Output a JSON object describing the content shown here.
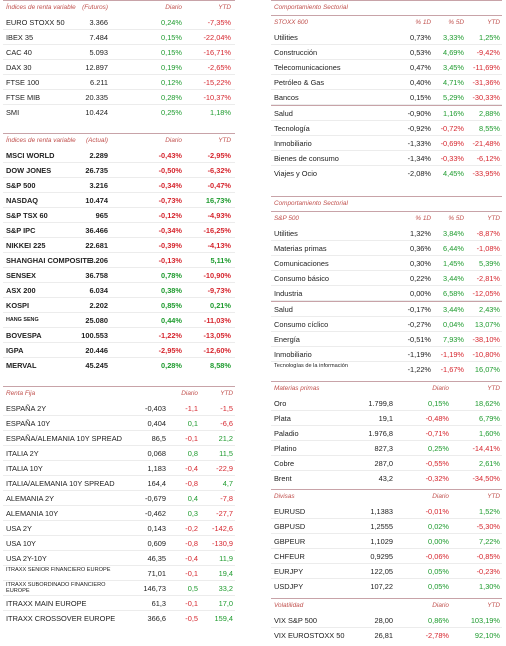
{
  "left": {
    "p1": {
      "headers": [
        "Índices de renta variable",
        "(Futuros)",
        "Diario",
        "YTD"
      ],
      "rows": [
        [
          "EURO STOXX 50",
          "3.366",
          "0,24%",
          "-7,35%"
        ],
        [
          "IBEX 35",
          "7.484",
          "0,15%",
          "-22,04%"
        ],
        [
          "CAC 40",
          "5.093",
          "0,15%",
          "-16,71%"
        ],
        [
          "DAX 30",
          "12.897",
          "0,19%",
          "-2,65%"
        ],
        [
          "FTSE 100",
          "6.211",
          "0,12%",
          "-15,22%"
        ],
        [
          "FTSE MIB",
          "20.335",
          "0,28%",
          "-10,37%"
        ],
        [
          "SMI",
          "10.424",
          "0,25%",
          "1,18%"
        ]
      ]
    },
    "p2": {
      "headers": [
        "Índices de renta variable",
        "(Actual)",
        "Diario",
        "YTD"
      ],
      "rows": [
        [
          "MSCI WORLD",
          "2.289",
          "-0,43%",
          "-2,95%"
        ],
        [
          "DOW JONES",
          "26.735",
          "-0,50%",
          "-6,32%"
        ],
        [
          "S&P 500",
          "3.216",
          "-0,34%",
          "-0,47%"
        ],
        [
          "NASDAQ",
          "10.474",
          "-0,73%",
          "16,73%"
        ],
        [
          "S&P TSX 60",
          "965",
          "-0,12%",
          "-4,93%"
        ],
        [
          "S&P IPC",
          "36.466",
          "-0,34%",
          "-16,25%"
        ],
        [
          "NIKKEI 225",
          "22.681",
          "-0,39%",
          "-4,13%"
        ],
        [
          "SHANGHAI COMPOSITE",
          "3.206",
          "-0,13%",
          "5,11%"
        ],
        [
          "SENSEX",
          "36.758",
          "0,78%",
          "-10,90%"
        ],
        [
          "ASX 200",
          "6.034",
          "0,38%",
          "-9,73%"
        ],
        [
          "KOSPI",
          "2.202",
          "0,85%",
          "0,21%"
        ],
        [
          "HANG SENG",
          "25.080",
          "0,44%",
          "-11,03%"
        ],
        [
          "BOVESPA",
          "100.553",
          "-1,22%",
          "-13,05%"
        ],
        [
          "IGPA",
          "20.446",
          "-2,95%",
          "-12,60%"
        ],
        [
          "MERVAL",
          "45.245",
          "0,28%",
          "8,58%"
        ]
      ]
    },
    "p3": {
      "headers": [
        "Renta Fija",
        "",
        "Diario",
        "YTD"
      ],
      "rows": [
        [
          "ESPAÑA 2Y",
          "-0,403",
          "-1,1",
          "-1,5"
        ],
        [
          "ESPAÑA 10Y",
          "0,404",
          "0,1",
          "-6,6"
        ],
        [
          "ESPAÑA/ALEMANIA 10Y SPREAD",
          "86,5",
          "-0,1",
          "21,2"
        ],
        [
          "ITALIA 2Y",
          "0,068",
          "0,8",
          "11,5"
        ],
        [
          "ITALIA 10Y",
          "1,183",
          "-0,4",
          "-22,9"
        ],
        [
          "ITALIA/ALEMANIA 10Y SPREAD",
          "164,4",
          "-0,8",
          "4,7"
        ],
        [
          "ALEMANIA 2Y",
          "-0,679",
          "0,4",
          "-7,8"
        ],
        [
          "ALEMANIA 10Y",
          "-0,462",
          "0,3",
          "-27,7"
        ],
        [
          "USA 2Y",
          "0,143",
          "-0,2",
          "-142,6"
        ],
        [
          "USA 10Y",
          "0,609",
          "-0,8",
          "-130,9"
        ],
        [
          "USA 2Y-10Y",
          "46,35",
          "-0,4",
          "11,9"
        ],
        [
          "ITRAXX SENIOR FINANCIERO EUROPE",
          "71,01",
          "-0,1",
          "19,4"
        ],
        [
          "ITRAXX SUBORDINADO FINANCIERO EUROPE",
          "146,73",
          "0,5",
          "33,2"
        ],
        [
          "ITRAXX MAIN EUROPE",
          "61,3",
          "-0,1",
          "17,0"
        ],
        [
          "ITRAXX CROSSOVER EUROPE",
          "366,6",
          "-0,5",
          "159,4"
        ]
      ]
    }
  },
  "right": {
    "p1": {
      "title": "Comportamiento Sectorial",
      "headers": [
        "STOXX 600",
        "% 1D",
        "% 5D",
        "YTD"
      ],
      "rows": [
        [
          "Utilities",
          "0,73%",
          "3,33%",
          "1,25%"
        ],
        [
          "Construcción",
          "0,53%",
          "4,69%",
          "-9,42%"
        ],
        [
          "Telecomunicaciones",
          "0,47%",
          "3,45%",
          "-11,69%"
        ],
        [
          "Petróleo & Gas",
          "0,40%",
          "4,71%",
          "-31,36%"
        ],
        [
          "Bancos",
          "0,15%",
          "5,29%",
          "-30,33%"
        ],
        [
          "Salud",
          "-0,90%",
          "1,16%",
          "2,88%"
        ],
        [
          "Tecnología",
          "-0,92%",
          "-0,72%",
          "8,55%"
        ],
        [
          "Inmobiliario",
          "-1,33%",
          "-0,69%",
          "-21,48%"
        ],
        [
          "Bienes de consumo",
          "-1,34%",
          "-0,33%",
          "-6,12%"
        ],
        [
          "Viajes y Ocio",
          "-2,08%",
          "4,45%",
          "-33,95%"
        ]
      ]
    },
    "p2": {
      "title": "Comportamiento Sectorial",
      "headers": [
        "S&P 500",
        "% 1D",
        "% 5D",
        "YTD"
      ],
      "rows": [
        [
          "Utilities",
          "1,32%",
          "3,84%",
          "-8,87%"
        ],
        [
          "Materias primas",
          "0,36%",
          "6,44%",
          "-1,08%"
        ],
        [
          "Comunicaciones",
          "0,30%",
          "1,45%",
          "5,39%"
        ],
        [
          "Consumo básico",
          "0,22%",
          "3,44%",
          "-2,81%"
        ],
        [
          "Industria",
          "0,00%",
          "6,58%",
          "-12,05%"
        ],
        [
          "Salud",
          "-0,17%",
          "3,44%",
          "2,43%"
        ],
        [
          "Consumo cíclico",
          "-0,27%",
          "0,04%",
          "13,07%"
        ],
        [
          "Energía",
          "-0,51%",
          "7,93%",
          "-38,10%"
        ],
        [
          "Inmobiliario",
          "-1,19%",
          "-1,19%",
          "-10,80%"
        ],
        [
          "Tecnologías de la información",
          "-1,22%",
          "-1,67%",
          "16,07%"
        ]
      ]
    },
    "p3": {
      "headers": [
        "Materias primas",
        "",
        "Diario",
        "YTD"
      ],
      "rows": [
        [
          "Oro",
          "1.799,8",
          "0,15%",
          "18,62%"
        ],
        [
          "Plata",
          "19,1",
          "-0,48%",
          "6,79%"
        ],
        [
          "Paladio",
          "1.976,8",
          "-0,71%",
          "1,60%"
        ],
        [
          "Platino",
          "827,3",
          "0,25%",
          "-14,41%"
        ],
        [
          "Cobre",
          "287,0",
          "-0,55%",
          "2,61%"
        ],
        [
          "Brent",
          "43,2",
          "-0,32%",
          "-34,50%"
        ]
      ]
    },
    "p4": {
      "headers": [
        "Divisas",
        "",
        "Diario",
        "YTD"
      ],
      "rows": [
        [
          "EURUSD",
          "1,1383",
          "-0,01%",
          "1,52%"
        ],
        [
          "GBPUSD",
          "1,2555",
          "0,02%",
          "-5,30%"
        ],
        [
          "GBPEUR",
          "1,1029",
          "0,00%",
          "7,22%"
        ],
        [
          "CHFEUR",
          "0,9295",
          "-0,06%",
          "-0,85%"
        ],
        [
          "EURJPY",
          "122,05",
          "0,05%",
          "-0,23%"
        ],
        [
          "USDJPY",
          "107,22",
          "0,05%",
          "1,30%"
        ]
      ]
    },
    "p5": {
      "headers": [
        "Volatilidad",
        "",
        "Diario",
        "YTD"
      ],
      "rows": [
        [
          "VIX S&P 500",
          "28,00",
          "0,86%",
          "103,19%"
        ],
        [
          "VIX EUROSTOXX 50",
          "26,81",
          "-2,78%",
          "92,10%"
        ]
      ]
    }
  }
}
